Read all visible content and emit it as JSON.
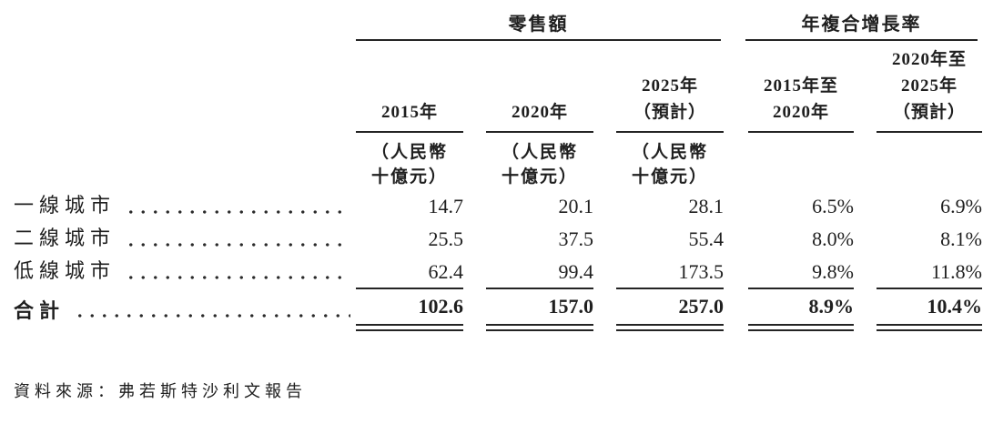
{
  "table": {
    "group_headers": [
      {
        "label": "零售額"
      },
      {
        "label": "年複合增長率"
      }
    ],
    "columns": [
      {
        "header_lines": [
          "2015年"
        ],
        "unit_lines": [
          "（人民幣",
          "十億元）"
        ]
      },
      {
        "header_lines": [
          "2020年"
        ],
        "unit_lines": [
          "（人民幣",
          "十億元）"
        ]
      },
      {
        "header_lines": [
          "2025年",
          "（預計）"
        ],
        "unit_lines": [
          "（人民幣",
          "十億元）"
        ]
      },
      {
        "header_lines": [
          "2015年至",
          "2020年"
        ],
        "unit_lines": []
      },
      {
        "header_lines": [
          "2020年至",
          "2025年",
          "（預計）"
        ],
        "unit_lines": []
      }
    ],
    "rows": [
      {
        "label": "一線城市",
        "values": [
          "14.7",
          "20.1",
          "28.1",
          "6.5%",
          "6.9%"
        ]
      },
      {
        "label": "二線城市",
        "values": [
          "25.5",
          "37.5",
          "55.4",
          "8.0%",
          "8.1%"
        ]
      },
      {
        "label": "低線城市",
        "values": [
          "62.4",
          "99.4",
          "173.5",
          "9.8%",
          "11.8%"
        ]
      }
    ],
    "total_row": {
      "label": "合計",
      "values": [
        "102.6",
        "157.0",
        "257.0",
        "8.9%",
        "10.4%"
      ]
    },
    "source_note": "資料來源：弗若斯特沙利文報告",
    "colors": {
      "text": "#1f1f1f",
      "rule": "#242424",
      "background": "#ffffff"
    }
  }
}
